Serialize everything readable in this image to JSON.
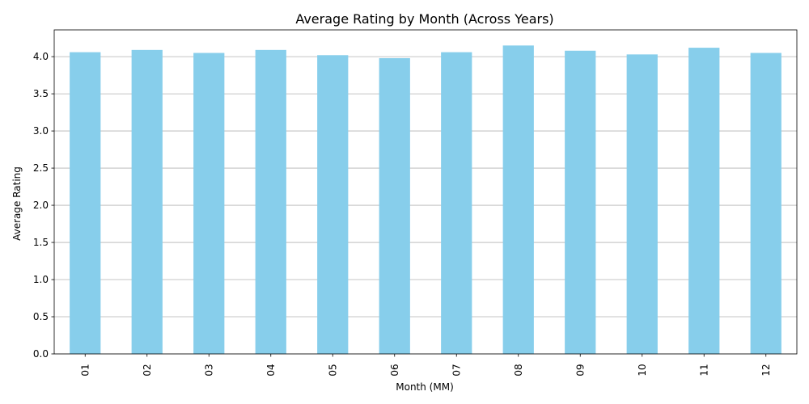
{
  "chart_data": {
    "type": "bar",
    "title": "Average Rating by Month (Across Years)",
    "xlabel": "Month (MM)",
    "ylabel": "Average Rating",
    "categories": [
      "01",
      "02",
      "03",
      "04",
      "05",
      "06",
      "07",
      "08",
      "09",
      "10",
      "11",
      "12"
    ],
    "values": [
      4.06,
      4.09,
      4.05,
      4.09,
      4.02,
      3.98,
      4.06,
      4.15,
      4.08,
      4.03,
      4.12,
      4.05
    ],
    "ylim": [
      0,
      4.36
    ],
    "yticks": [
      "0.0",
      "0.5",
      "1.0",
      "1.5",
      "2.0",
      "2.5",
      "3.0",
      "3.5",
      "4.0"
    ],
    "bar_color": "#87ceeb",
    "grid": "horizontal",
    "legend": "none"
  }
}
